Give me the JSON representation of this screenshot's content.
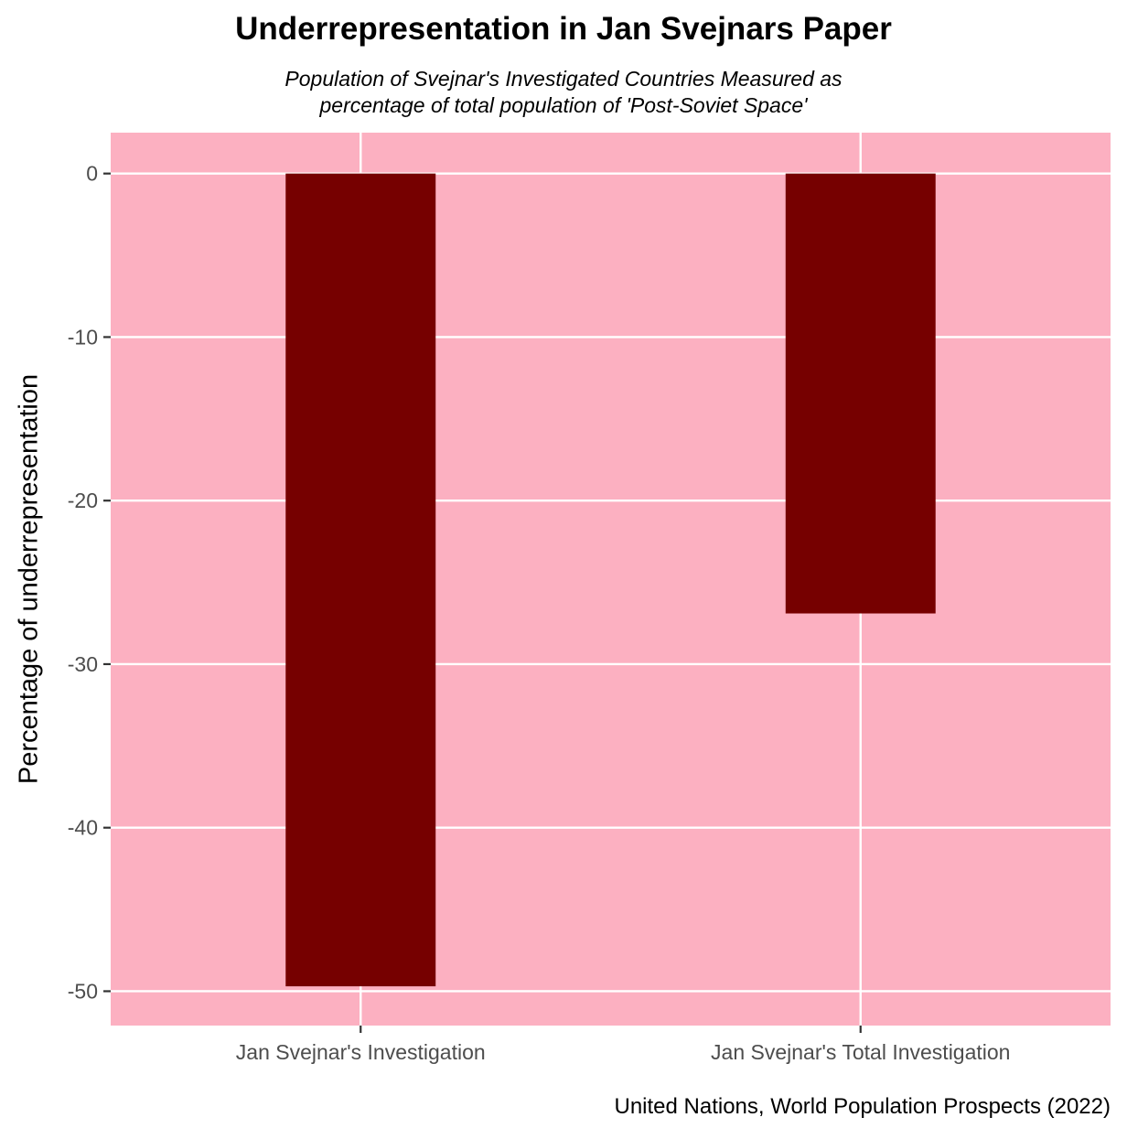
{
  "chart_data": {
    "type": "bar",
    "title": "Underrepresentation in Jan Svejnars Paper",
    "subtitle": [
      "Population of Svejnar's Investigated Countries Measured as",
      "percentage of total population of 'Post-Soviet Space'"
    ],
    "caption": "United Nations, World Population Prospects (2022)",
    "xlabel": "",
    "ylabel": "Percentage of underrepresentation",
    "categories": [
      "Jan Svejnar's Investigation",
      "Jan Svejnar's Total Investigation"
    ],
    "values": [
      -49.7,
      -26.9
    ],
    "ylim": [
      -52.1,
      2.5
    ],
    "yticks": [
      0,
      -10,
      -20,
      -30,
      -40,
      -50
    ],
    "grid": true,
    "colors": {
      "panel": "#FCB0C1",
      "bar": "#760000",
      "grid": "#ffffff"
    }
  }
}
